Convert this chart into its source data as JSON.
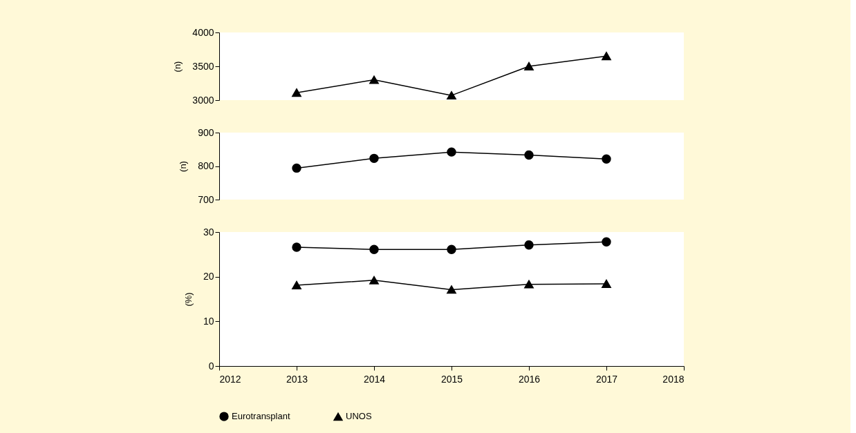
{
  "chart_data": [
    {
      "type": "line",
      "ylabel": "(n)",
      "x": [
        2013,
        2014,
        2015,
        2016,
        2017
      ],
      "xlim": [
        2012,
        2018
      ],
      "ylim": [
        3000,
        4000
      ],
      "yticks": [
        3000,
        3500,
        4000
      ],
      "tick_labels": "y",
      "grid": false,
      "legend": false,
      "series": [
        {
          "color": "#000000",
          "marker": "triangle",
          "line_style": "solid",
          "values": [
            3110,
            3300,
            3070,
            3500,
            3650
          ]
        }
      ]
    },
    {
      "type": "line",
      "ylabel": "(n)",
      "x": [
        2013,
        2014,
        2015,
        2016,
        2017
      ],
      "xlim": [
        2012,
        2018
      ],
      "ylim": [
        700,
        900
      ],
      "yticks": [
        700,
        800,
        900
      ],
      "tick_labels": "y",
      "grid": false,
      "legend": false,
      "series": [
        {
          "color": "#000000",
          "marker": "circle",
          "line_style": "solid",
          "values": [
            794,
            823,
            842,
            833,
            821
          ]
        }
      ]
    },
    {
      "type": "line",
      "ylabel": "(%)",
      "x": [
        2013,
        2014,
        2015,
        2016,
        2017
      ],
      "xlim": [
        2012,
        2018
      ],
      "xticks": [
        2012,
        2013,
        2014,
        2015,
        2016,
        2017,
        2018
      ],
      "ylim": [
        0,
        30
      ],
      "yticks": [
        0,
        10,
        20,
        30
      ],
      "grid": false,
      "legend": "bottom",
      "series": [
        {
          "name": "Eurotransplant",
          "color": "#000000",
          "marker": "circle",
          "line_style": "solid",
          "values": [
            26.6,
            26.1,
            26.1,
            27.1,
            27.8
          ]
        },
        {
          "name": "UNOS",
          "color": "#000000",
          "marker": "triangle",
          "line_style": "solid",
          "values": [
            18.1,
            19.2,
            17.1,
            18.3,
            18.4
          ]
        }
      ]
    }
  ]
}
